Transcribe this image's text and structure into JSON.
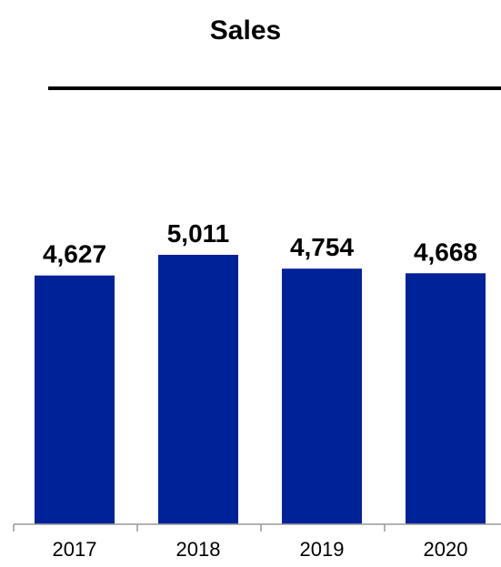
{
  "chart_data": {
    "type": "bar",
    "title": "Sales",
    "categories": [
      "2017",
      "2018",
      "2019",
      "2020"
    ],
    "values": [
      4627,
      5011,
      4754,
      4668
    ],
    "data_labels": [
      "4,627",
      "5,011",
      "4,754",
      "4,668"
    ],
    "xlabel": "",
    "ylabel": "",
    "ylim": [
      0,
      5700
    ],
    "grid": false,
    "legend": "none",
    "bar_color": "#002299"
  }
}
